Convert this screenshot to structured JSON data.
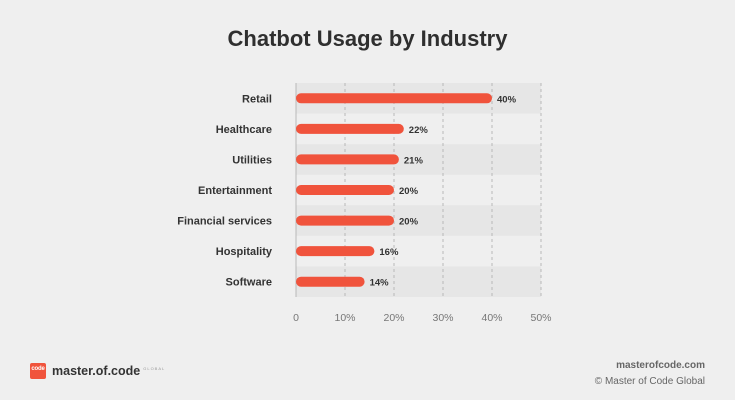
{
  "chart_data": {
    "type": "bar",
    "orientation": "horizontal",
    "title": "Chatbot Usage by Industry",
    "categories": [
      "Retail",
      "Healthcare",
      "Utilities",
      "Entertainment",
      "Financial services",
      "Hospitality",
      "Software"
    ],
    "values": [
      40,
      22,
      21,
      20,
      20,
      16,
      14
    ],
    "value_labels": [
      "40%",
      "22%",
      "21%",
      "20%",
      "20%",
      "16%",
      "14%"
    ],
    "xlim": [
      0,
      50
    ],
    "xticks": [
      0,
      10,
      20,
      30,
      40,
      50
    ],
    "xtick_labels": [
      "0",
      "10%",
      "20%",
      "30%",
      "40%",
      "50%"
    ],
    "grid": "vertical dashed",
    "bar_color": "#f0533c",
    "stripe_color": "#e6e6e6"
  },
  "footer": {
    "logo_mark": "code",
    "logo_text": "master.of.code",
    "logo_sub": "GLOBAL",
    "site": "masterofcode.com",
    "copyright": "© Master of Code Global"
  }
}
